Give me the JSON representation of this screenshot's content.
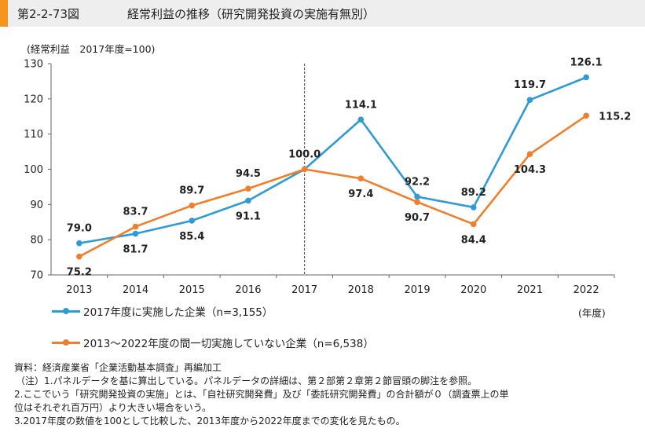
{
  "figure": {
    "number": "第2-2-73図",
    "title": "経常利益の推移（研究開発投資の実施有無別）"
  },
  "chart_data": {
    "type": "line",
    "ylabel": "(経常利益　2017年度=100)",
    "x_unit": "(年度)",
    "categories": [
      "2013",
      "2014",
      "2015",
      "2016",
      "2017",
      "2018",
      "2019",
      "2020",
      "2021",
      "2022"
    ],
    "ylim": [
      70,
      130
    ],
    "yticks": [
      70,
      80,
      90,
      100,
      110,
      120,
      130
    ],
    "grid": false,
    "reference_line_at": "2017",
    "series": [
      {
        "name": "2017年度に実施した企業（n=3,155）",
        "color": "#2e9bd6",
        "values": [
          79.0,
          81.7,
          85.4,
          91.1,
          100.0,
          114.1,
          92.2,
          89.2,
          119.7,
          126.1
        ],
        "labels": [
          "79.0",
          "81.7",
          "85.4",
          "91.1",
          "100.0",
          "114.1",
          "92.2",
          "89.2",
          "119.7",
          "126.1"
        ]
      },
      {
        "name": "2013～2022年度の間一切実施していない企業（n=6,538）",
        "color": "#f07f2d",
        "values": [
          75.2,
          83.7,
          89.7,
          94.5,
          100.0,
          97.4,
          90.7,
          84.4,
          104.3,
          115.2
        ],
        "labels": [
          "75.2",
          "83.7",
          "89.7",
          "94.5",
          "",
          "97.4",
          "90.7",
          "84.4",
          "104.3",
          "115.2"
        ]
      }
    ]
  },
  "notes": [
    "資料：経済産業省「企業活動基本調査」再編加工",
    "（注）1.パネルデータを基に算出している。パネルデータの詳細は、第２部第２章第２節冒頭の脚注を参照。",
    "2.ここでいう「研究開発投資の実施」とは、「自社研究開発費」及び「委託研究開発費」の合計額が０（調査票上の単",
    "位はそれぞれ百万円）より大きい場合をいう。",
    "3.2017年度の数値を100として比較した、2013年度から2022年度までの変化を見たもの。"
  ]
}
